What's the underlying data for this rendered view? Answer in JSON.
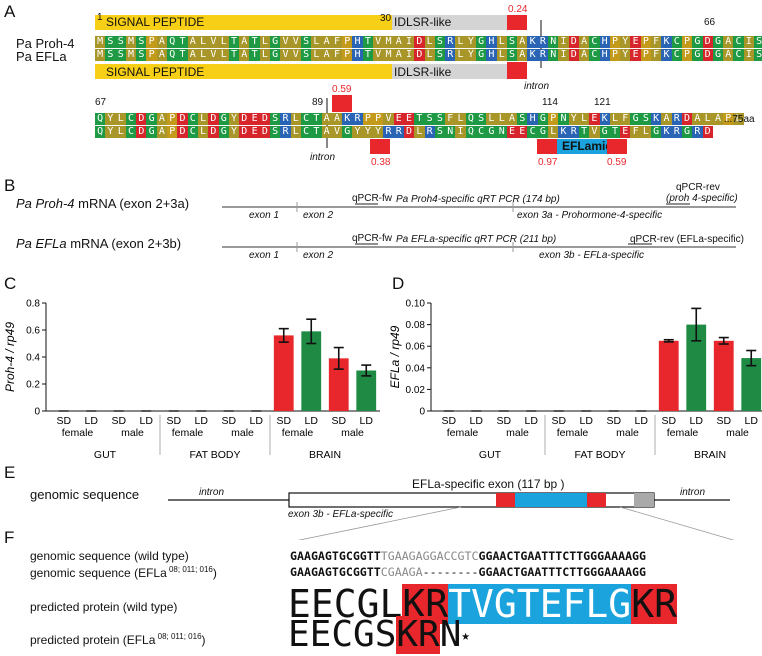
{
  "panels": {
    "a": "A",
    "b": "B",
    "c": "C",
    "d": "D",
    "e": "E",
    "f": "F"
  },
  "panelA": {
    "label_proh4": "Pa Proh-4",
    "label_efla": "Pa EFLa",
    "signal_peptide": "SIGNAL PEPTIDE",
    "idlsr": "IDLSR-like",
    "num_1": "1",
    "num_30": "30",
    "num_66": "66",
    "num_67": "67",
    "num_89": "89",
    "num_114": "114",
    "num_121": "121",
    "val_024": "0.24",
    "val_059a": "0.59",
    "val_038": "0.38",
    "val_097": "0.97",
    "val_059b": "0.59",
    "intron1": "intron",
    "intron2": "intron",
    "eflamide": "EFLamide",
    "tail": "...75aa",
    "seq1": "MSSMSPAQTALVLTATLGVVSLAFPHTVMAIDLSRLYGHLSAKRNIDACHPYEPFKCPGDGACISI",
    "seq2": "MSSMSPAQTALVLTATLGVVSLAFPHTVMAIDLSRLYGHLSAKRNIDACHPYEPFKCPGDGACISI",
    "seq3": "QYLCDGAPDCLDGYDEDSRLCTAAKRPPVEETSSFLQSLLASHGPNYLEKLFGSKARDALAPL",
    "seq4": "QYLCDGAPDCLDGYDEDSRLCTAVGYYYRRDLRSNIQCGNEECGLKRTVGTEFLGKRGRD"
  },
  "panelB": {
    "proh4_title_it": "Pa Proh-4",
    "proh4_title": " mRNA (exon 2+3a)",
    "efla_title_it": "Pa EFLa",
    "efla_title": " mRNA (exon 2+3b)",
    "qpcr_fw1": "qPCR-fw",
    "qpcr_fw2": "qPCR-fw",
    "pcr1": "Pa Proh4-specific qRT PCR (174 bp)",
    "pcr2": "Pa EFLa-specific qRT PCR (211 bp)",
    "qpcr_rev1": "qPCR-rev",
    "qpcr_rev1b": "(proh 4-specific)",
    "qpcr_rev2": "qPCR-rev (EFLa-specific)",
    "exon1a": "exon 1",
    "exon2a": "exon 2",
    "exon3a": "exon 3a - Prohormone-4-specific",
    "exon1b": "exon 1",
    "exon2b": "exon 2",
    "exon3b": "exon 3b - EFLa-specific"
  },
  "chart_data": [
    {
      "type": "bar",
      "ylabel": "Proh-4 / rp49",
      "ylim": [
        0,
        0.8
      ],
      "yticks": [
        "0",
        "0.2",
        "0.4",
        "0.6",
        "0.8"
      ],
      "categories": [
        "SD female",
        "LD female",
        "SD male",
        "LD male",
        "SD female",
        "LD female",
        "SD male",
        "LD male",
        "SD female",
        "LD female",
        "SD male",
        "LD male"
      ],
      "groups": [
        "GUT",
        "FAT BODY",
        "BRAIN"
      ],
      "values": [
        0,
        0,
        0,
        0,
        0,
        0,
        0,
        0,
        0.56,
        0.59,
        0.39,
        0.3
      ],
      "errors": [
        0,
        0,
        0,
        0,
        0,
        0,
        0,
        0,
        0.05,
        0.09,
        0.08,
        0.04
      ],
      "colors": [
        "#e8272c",
        "#1e8a44",
        "#e8272c",
        "#1e8a44"
      ]
    },
    {
      "type": "bar",
      "ylabel": "EFLa / rp49",
      "ylim": [
        0,
        0.1
      ],
      "yticks": [
        "0",
        "0.02",
        "0.04",
        "0.06",
        "0.08",
        "0.10"
      ],
      "categories": [
        "SD female",
        "LD female",
        "SD male",
        "LD male",
        "SD female",
        "LD female",
        "SD male",
        "LD male",
        "SD female",
        "LD female",
        "SD male",
        "LD male"
      ],
      "groups": [
        "GUT",
        "FAT BODY",
        "BRAIN"
      ],
      "values": [
        0,
        0,
        0,
        0,
        0,
        0,
        0,
        0,
        0.065,
        0.08,
        0.065,
        0.049
      ],
      "errors": [
        0,
        0,
        0,
        0,
        0,
        0,
        0,
        0,
        0.001,
        0.015,
        0.003,
        0.007
      ],
      "colors": [
        "#e8272c",
        "#1e8a44",
        "#e8272c",
        "#1e8a44"
      ]
    }
  ],
  "panelE": {
    "genomic": "genomic sequence",
    "intron_l": "intron",
    "intron_r": "intron",
    "exon_title": "EFLa-specific exon (117 bp )",
    "exon_sub": "exon 3b - EFLa-specific"
  },
  "panelF": {
    "row1": "genomic sequence (wild type)",
    "row2_pre": "genomic sequence (EFLa",
    "row2_sup": " 08; 011; 016",
    "row2_post": ")",
    "row3": "predicted protein (wild type)",
    "row4_pre": "predicted protein (EFLa",
    "row4_sup": " 08; 011; 016",
    "row4_post": ")",
    "wt_bold1": "GAAGAGTGCGGTT",
    "wt_grey": "TGAAGAGGACCGTC",
    "wt_bold2": "GGAACTGAATTTCTTGGGAAAAGG",
    "mt_bold1": "GAAGAGTGCGGTT",
    "mt_grey": "CGAAGA",
    "mt_dash": "--------",
    "mt_bold2": "GGAACTGAATTTCTTGGGAAAAGG",
    "p_wt_a": "EECGL",
    "p_wt_kr1": "KR",
    "p_wt_mid": "TVGTEFLG",
    "p_wt_kr2": "KR",
    "p_mt_a": "EECGS",
    "p_mt_krn": "KR",
    "p_mt_n": "N",
    "star": "★"
  }
}
